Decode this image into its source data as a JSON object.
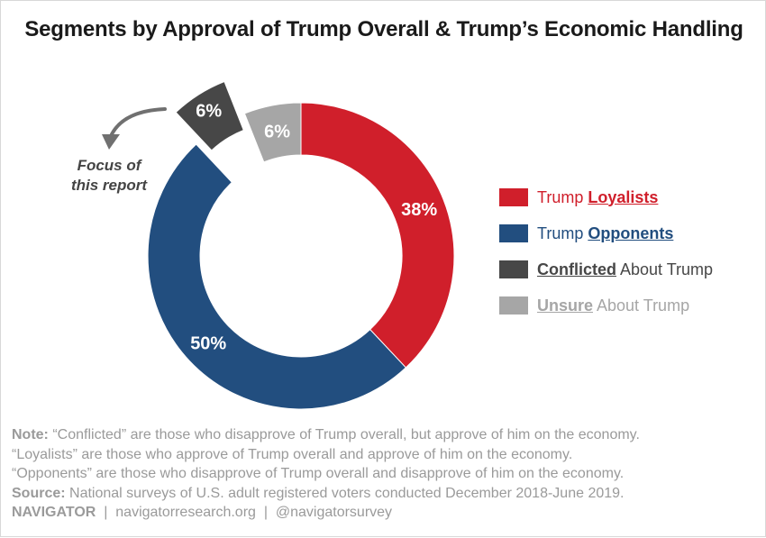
{
  "title": "Segments by Approval of Trump Overall & Trump’s Economic Handling",
  "colors": {
    "loyalists": "#d01f2b",
    "opponents": "#224e7f",
    "conflicted": "#474747",
    "unsure": "#a6a6a6"
  },
  "annotation": {
    "line1": "Focus of",
    "line2": "this report"
  },
  "legend": [
    {
      "prefix": "Trump ",
      "em": "Loyalists",
      "suffix": "",
      "color": "#d01f2b",
      "text_color": "#d01f2b"
    },
    {
      "prefix": "Trump ",
      "em": "Opponents",
      "suffix": "",
      "color": "#224e7f",
      "text_color": "#224e7f"
    },
    {
      "prefix": "",
      "em": "Conflicted",
      "suffix": " About Trump",
      "color": "#474747",
      "text_color": "#474747"
    },
    {
      "prefix": "",
      "em": "Unsure",
      "suffix": " About Trump",
      "color": "#a6a6a6",
      "text_color": "#a6a6a6"
    }
  ],
  "notes": {
    "note_label": "Note:",
    "note_line1": " “Conflicted” are those who disapprove of Trump overall, but approve of him on the economy.",
    "note_line2": "“Loyalists” are those who approve of Trump overall and approve of him on the economy.",
    "note_line3": "“Opponents” are those who disapprove of Trump overall and disapprove of him on the economy.",
    "source_label": "Source:",
    "source_text": " National surveys of U.S. adult registered voters conducted December 2018-June 2019."
  },
  "footer": {
    "brand": "NAVIGATOR",
    "sep1": "  |  ",
    "site": "navigatorresearch.org",
    "sep2": "  |  ",
    "handle": "@navigatorsurvey"
  },
  "chart_data": {
    "type": "pie",
    "variant": "donut",
    "start": "top, clockwise",
    "categories": [
      "Trump Loyalists",
      "Trump Opponents",
      "Conflicted About Trump",
      "Unsure About Trump"
    ],
    "values": [
      38,
      50,
      6,
      6
    ],
    "labels": [
      "38%",
      "50%",
      "6%",
      "6%"
    ],
    "colors": [
      "#d01f2b",
      "#224e7f",
      "#474747",
      "#a6a6a6"
    ],
    "exploded": [
      "Conflicted About Trump"
    ],
    "legend": "right"
  }
}
